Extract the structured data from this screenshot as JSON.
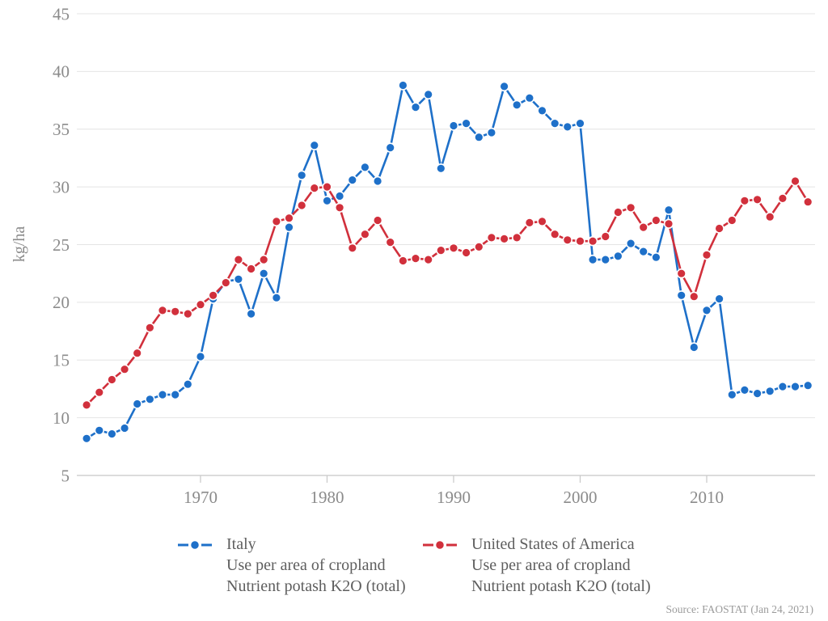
{
  "page": {
    "background": "#ffffff"
  },
  "ylabel": "kg/ha",
  "source": {
    "label": "Source: FAOSTAT (Jan 24, 2021)"
  },
  "chart_data": {
    "type": "line",
    "title": "",
    "ylabel": "kg/ha",
    "ylim": [
      5,
      45
    ],
    "ytick_step": 5,
    "xlim": [
      1961,
      2018
    ],
    "xticks": [
      1970,
      1980,
      1990,
      2000,
      2010
    ],
    "grid": true,
    "legend_position": "bottom",
    "marker": "circle-with-white-ring",
    "x": [
      1961,
      1962,
      1963,
      1964,
      1965,
      1966,
      1967,
      1968,
      1969,
      1970,
      1971,
      1972,
      1973,
      1974,
      1975,
      1976,
      1977,
      1978,
      1979,
      1980,
      1981,
      1982,
      1983,
      1984,
      1985,
      1986,
      1987,
      1988,
      1989,
      1990,
      1991,
      1992,
      1993,
      1994,
      1995,
      1996,
      1997,
      1998,
      1999,
      2000,
      2001,
      2002,
      2003,
      2004,
      2005,
      2006,
      2007,
      2008,
      2009,
      2010,
      2011,
      2012,
      2013,
      2014,
      2015,
      2016,
      2017,
      2018
    ],
    "series": [
      {
        "name": "Italy",
        "subtitle_line1": "Use per area of cropland",
        "subtitle_line2": "Nutrient potash K2O (total)",
        "color": "#1e70c9",
        "values": [
          8.2,
          8.9,
          8.6,
          9.1,
          11.2,
          11.6,
          12.0,
          12.0,
          12.9,
          15.3,
          20.3,
          21.8,
          22.0,
          19.0,
          22.5,
          20.4,
          26.5,
          31.0,
          33.6,
          28.8,
          29.2,
          30.6,
          31.7,
          30.5,
          33.4,
          38.8,
          36.9,
          38.0,
          31.6,
          35.3,
          35.5,
          34.3,
          34.7,
          38.7,
          37.1,
          37.7,
          36.6,
          35.5,
          35.2,
          35.5,
          23.7,
          23.7,
          24.0,
          25.1,
          24.4,
          23.9,
          28.0,
          20.6,
          16.1,
          19.3,
          20.3,
          12.0,
          12.4,
          12.1,
          12.3,
          12.7,
          12.7,
          12.8
        ]
      },
      {
        "name": "United States of America",
        "subtitle_line1": "Use per area of cropland",
        "subtitle_line2": "Nutrient potash K2O (total)",
        "color": "#d1303c",
        "values": [
          11.1,
          12.2,
          13.3,
          14.2,
          15.6,
          17.8,
          19.3,
          19.2,
          19.0,
          19.8,
          20.6,
          21.7,
          23.7,
          22.9,
          23.7,
          27.0,
          27.3,
          28.4,
          29.9,
          30.0,
          28.2,
          24.7,
          25.9,
          27.1,
          25.2,
          23.6,
          23.8,
          23.7,
          24.5,
          24.7,
          24.3,
          24.8,
          25.6,
          25.5,
          25.6,
          26.9,
          27.0,
          25.9,
          25.4,
          25.3,
          25.3,
          25.7,
          27.8,
          28.2,
          26.5,
          27.1,
          26.8,
          22.5,
          20.5,
          24.1,
          26.4,
          27.1,
          28.8,
          28.9,
          27.4,
          29.0,
          30.5,
          28.7
        ]
      }
    ]
  }
}
